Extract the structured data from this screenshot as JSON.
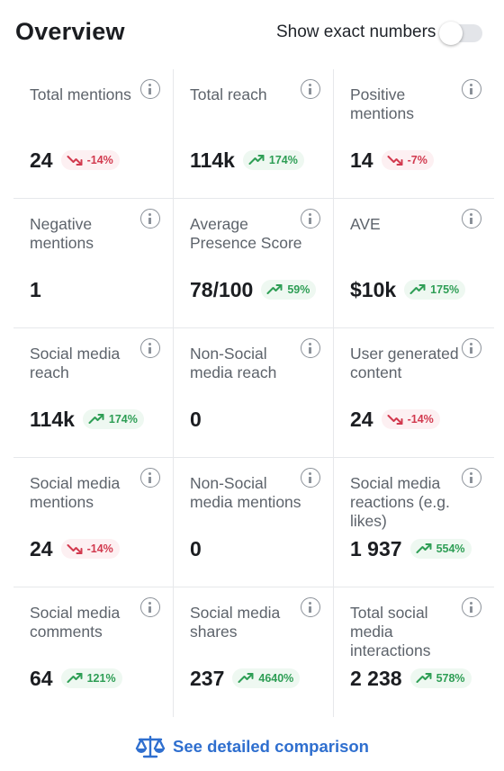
{
  "header": {
    "title": "Overview",
    "toggle_label": "Show exact numbers",
    "toggle_on": false
  },
  "metrics": [
    {
      "label": "Total mentions",
      "value": "24",
      "change": "-14%",
      "trend": "down"
    },
    {
      "label": "Total reach",
      "value": "114k",
      "change": "174%",
      "trend": "up"
    },
    {
      "label": "Positive mentions",
      "value": "14",
      "change": "-7%",
      "trend": "down"
    },
    {
      "label": "Negative mentions",
      "value": "1",
      "change": "",
      "trend": "none"
    },
    {
      "label": "Average Presence Score",
      "value": "78/100",
      "change": "59%",
      "trend": "up"
    },
    {
      "label": "AVE",
      "value": "$10k",
      "change": "175%",
      "trend": "up"
    },
    {
      "label": "Social media reach",
      "value": "114k",
      "change": "174%",
      "trend": "up"
    },
    {
      "label": "Non-Social media reach",
      "value": "0",
      "change": "",
      "trend": "none"
    },
    {
      "label": "User generated content",
      "value": "24",
      "change": "-14%",
      "trend": "down"
    },
    {
      "label": "Social media mentions",
      "value": "24",
      "change": "-14%",
      "trend": "down"
    },
    {
      "label": "Non-Social media mentions",
      "value": "0",
      "change": "",
      "trend": "none"
    },
    {
      "label": "Social media reactions (e.g. likes)",
      "value": "1 937",
      "change": "554%",
      "trend": "up"
    },
    {
      "label": "Social media comments",
      "value": "64",
      "change": "121%",
      "trend": "up"
    },
    {
      "label": "Social media shares",
      "value": "237",
      "change": "4640%",
      "trend": "up"
    },
    {
      "label": "Total social media interactions",
      "value": "2 238",
      "change": "578%",
      "trend": "up"
    }
  ],
  "footer": {
    "compare_label": "See detailed comparison",
    "icon": "balance-scale-icon"
  },
  "colors": {
    "accent": "#2f6fcf",
    "down": "#d23a4f",
    "down_bg": "#fdf0f2",
    "up": "#2e9e55",
    "up_bg": "#eef8f1"
  }
}
